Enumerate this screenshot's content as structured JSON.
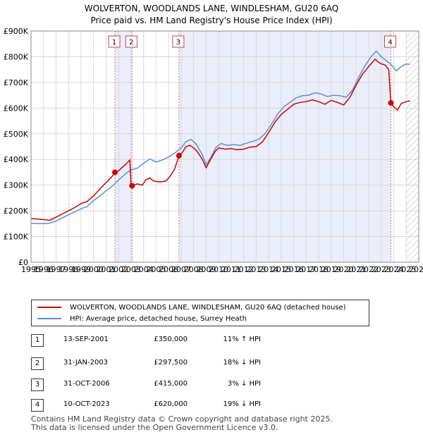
{
  "chart_data": {
    "type": "line",
    "title": "WOLVERTON, WOODLANDS LANE, WINDLESHAM, GU20 6AQ",
    "subtitle": "Price paid vs. HM Land Registry's House Price Index (HPI)",
    "xlim": [
      1995,
      2026
    ],
    "ylim": [
      0,
      900000
    ],
    "x_ticks": [
      "1995",
      "1996",
      "1997",
      "1998",
      "1999",
      "2000",
      "2001",
      "2002",
      "2003",
      "2004",
      "2005",
      "2006",
      "2007",
      "2008",
      "2009",
      "2010",
      "2011",
      "2012",
      "2013",
      "2014",
      "2015",
      "2016",
      "2017",
      "2018",
      "2019",
      "2020",
      "2021",
      "2022",
      "2023",
      "2024",
      "2025",
      "2026"
    ],
    "y_ticks": [
      {
        "value": 0,
        "label": "£0"
      },
      {
        "value": 100000,
        "label": "£100K"
      },
      {
        "value": 200000,
        "label": "£200K"
      },
      {
        "value": 300000,
        "label": "£300K"
      },
      {
        "value": 400000,
        "label": "£400K"
      },
      {
        "value": 500000,
        "label": "£500K"
      },
      {
        "value": 600000,
        "label": "£600K"
      },
      {
        "value": 700000,
        "label": "£700K"
      },
      {
        "value": 800000,
        "label": "£800K"
      },
      {
        "value": 900000,
        "label": "£900K"
      }
    ],
    "series": [
      {
        "name": "WOLVERTON, WOODLANDS LANE, WINDLESHAM, GU20 6AQ (detached house)",
        "color": "#cc0000",
        "points": [
          [
            1995.0,
            170000
          ],
          [
            1995.5,
            168000
          ],
          [
            1996.0,
            166000
          ],
          [
            1996.5,
            163000
          ],
          [
            1997.0,
            175000
          ],
          [
            1997.5,
            188000
          ],
          [
            1998.0,
            200000
          ],
          [
            1998.5,
            213000
          ],
          [
            1999.0,
            228000
          ],
          [
            1999.5,
            237000
          ],
          [
            2000.0,
            258000
          ],
          [
            2000.5,
            285000
          ],
          [
            2001.0,
            310000
          ],
          [
            2001.5,
            335000
          ],
          [
            2001.71,
            350000
          ],
          [
            2002.0,
            356000
          ],
          [
            2002.5,
            378000
          ],
          [
            2002.9,
            398000
          ],
          [
            2003.0,
            300000
          ],
          [
            2003.08,
            297500
          ],
          [
            2003.5,
            305000
          ],
          [
            2003.9,
            300000
          ],
          [
            2004.2,
            322000
          ],
          [
            2004.5,
            328000
          ],
          [
            2004.8,
            316000
          ],
          [
            2005.3,
            312000
          ],
          [
            2005.8,
            316000
          ],
          [
            2006.2,
            340000
          ],
          [
            2006.5,
            365000
          ],
          [
            2006.83,
            415000
          ],
          [
            2007.0,
            420000
          ],
          [
            2007.4,
            450000
          ],
          [
            2007.7,
            455000
          ],
          [
            2008.0,
            445000
          ],
          [
            2008.3,
            430000
          ],
          [
            2008.7,
            400000
          ],
          [
            2009.0,
            368000
          ],
          [
            2009.3,
            395000
          ],
          [
            2009.7,
            430000
          ],
          [
            2010.0,
            445000
          ],
          [
            2010.5,
            440000
          ],
          [
            2011.0,
            442000
          ],
          [
            2011.5,
            438000
          ],
          [
            2012.0,
            440000
          ],
          [
            2012.5,
            448000
          ],
          [
            2013.0,
            450000
          ],
          [
            2013.5,
            468000
          ],
          [
            2014.0,
            505000
          ],
          [
            2014.5,
            545000
          ],
          [
            2015.0,
            575000
          ],
          [
            2015.5,
            595000
          ],
          [
            2016.0,
            615000
          ],
          [
            2016.5,
            622000
          ],
          [
            2017.0,
            625000
          ],
          [
            2017.5,
            632000
          ],
          [
            2018.0,
            625000
          ],
          [
            2018.5,
            615000
          ],
          [
            2019.0,
            630000
          ],
          [
            2019.5,
            622000
          ],
          [
            2020.0,
            612000
          ],
          [
            2020.5,
            642000
          ],
          [
            2021.0,
            690000
          ],
          [
            2021.5,
            732000
          ],
          [
            2022.0,
            762000
          ],
          [
            2022.5,
            790000
          ],
          [
            2022.8,
            778000
          ],
          [
            2023.0,
            772000
          ],
          [
            2023.3,
            768000
          ],
          [
            2023.6,
            750000
          ],
          [
            2023.77,
            620000
          ],
          [
            2024.0,
            605000
          ],
          [
            2024.3,
            592000
          ],
          [
            2024.6,
            618000
          ],
          [
            2025.0,
            625000
          ],
          [
            2025.3,
            628000
          ]
        ]
      },
      {
        "name": "HPI: Average price, detached house, Surrey Heath",
        "color": "#5b8fd6",
        "points": [
          [
            1995.0,
            152000
          ],
          [
            1995.5,
            150000
          ],
          [
            1996.0,
            150000
          ],
          [
            1996.5,
            152000
          ],
          [
            1997.0,
            160000
          ],
          [
            1997.5,
            172000
          ],
          [
            1998.0,
            185000
          ],
          [
            1998.5,
            196000
          ],
          [
            1999.0,
            208000
          ],
          [
            1999.5,
            217000
          ],
          [
            2000.0,
            240000
          ],
          [
            2000.5,
            258000
          ],
          [
            2001.0,
            278000
          ],
          [
            2001.5,
            296000
          ],
          [
            2002.0,
            320000
          ],
          [
            2002.5,
            342000
          ],
          [
            2003.0,
            360000
          ],
          [
            2003.5,
            366000
          ],
          [
            2004.0,
            385000
          ],
          [
            2004.5,
            402000
          ],
          [
            2005.0,
            390000
          ],
          [
            2005.5,
            398000
          ],
          [
            2006.0,
            410000
          ],
          [
            2006.5,
            425000
          ],
          [
            2007.0,
            445000
          ],
          [
            2007.4,
            470000
          ],
          [
            2007.8,
            478000
          ],
          [
            2008.2,
            460000
          ],
          [
            2008.7,
            418000
          ],
          [
            2009.0,
            380000
          ],
          [
            2009.4,
            410000
          ],
          [
            2009.8,
            448000
          ],
          [
            2010.2,
            462000
          ],
          [
            2010.7,
            455000
          ],
          [
            2011.2,
            458000
          ],
          [
            2011.7,
            455000
          ],
          [
            2012.2,
            463000
          ],
          [
            2012.7,
            470000
          ],
          [
            2013.2,
            478000
          ],
          [
            2013.7,
            500000
          ],
          [
            2014.2,
            535000
          ],
          [
            2014.7,
            575000
          ],
          [
            2015.2,
            605000
          ],
          [
            2015.7,
            622000
          ],
          [
            2016.2,
            640000
          ],
          [
            2016.7,
            648000
          ],
          [
            2017.2,
            650000
          ],
          [
            2017.7,
            660000
          ],
          [
            2018.2,
            655000
          ],
          [
            2018.7,
            645000
          ],
          [
            2019.2,
            650000
          ],
          [
            2019.7,
            648000
          ],
          [
            2020.2,
            642000
          ],
          [
            2020.7,
            670000
          ],
          [
            2021.2,
            720000
          ],
          [
            2021.7,
            765000
          ],
          [
            2022.2,
            800000
          ],
          [
            2022.6,
            822000
          ],
          [
            2023.0,
            800000
          ],
          [
            2023.4,
            785000
          ],
          [
            2023.8,
            768000
          ],
          [
            2024.2,
            745000
          ],
          [
            2024.6,
            762000
          ],
          [
            2025.0,
            772000
          ],
          [
            2025.3,
            770000
          ]
        ]
      }
    ],
    "sales": [
      {
        "id": "1",
        "date": "13-SEP-2001",
        "price": "£350,000",
        "hpi": "11% ↑ HPI",
        "x": 2001.71,
        "y": 350000
      },
      {
        "id": "2",
        "date": "31-JAN-2003",
        "price": "£297,500",
        "hpi": "18% ↓ HPI",
        "x": 2003.08,
        "y": 297500
      },
      {
        "id": "3",
        "date": "31-OCT-2006",
        "price": "£415,000",
        "hpi": "3% ↓ HPI",
        "x": 2006.83,
        "y": 415000
      },
      {
        "id": "4",
        "date": "10-OCT-2023",
        "price": "£620,000",
        "hpi": "19% ↓ HPI",
        "x": 2023.77,
        "y": 620000
      }
    ],
    "shaded_ranges": [
      [
        2001.71,
        2003.08
      ],
      [
        2006.83,
        2023.77
      ]
    ],
    "hatched_from": 2025.0
  },
  "footer": {
    "line1": "Contains HM Land Registry data © Crown copyright and database right 2025.",
    "line2": "This data is licensed under the Open Government Licence v3.0."
  }
}
